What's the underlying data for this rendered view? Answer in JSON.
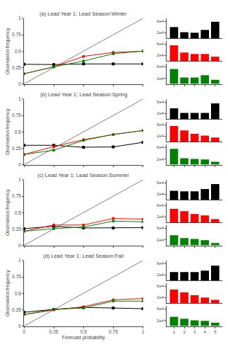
{
  "chart_data": [
    {
      "type": "line",
      "title": "(a) Lead Year 1; Lead Season:Winter",
      "ylabel": "Observation frequency",
      "x": [
        0,
        0.25,
        0.5,
        0.75,
        1.0
      ],
      "xlim": [
        0,
        1
      ],
      "ylim": [
        0,
        1
      ],
      "xticks": [
        0,
        0.25,
        0.5,
        0.75,
        1
      ],
      "yticks": [
        0,
        0.25,
        0.5,
        0.75,
        1
      ],
      "grid": false,
      "tick_labels": "y",
      "series": [
        {
          "color": "gray",
          "values": [
            0,
            0.25,
            0.5,
            0.75,
            1
          ]
        },
        {
          "color": "black",
          "marker": "square",
          "values": [
            0.3,
            0.295,
            0.305,
            0.305,
            0.305
          ]
        },
        {
          "color": "red",
          "marker": "circle",
          "values": [
            0.155,
            0.26,
            0.42,
            0.48,
            0.5
          ]
        },
        {
          "color": "green",
          "marker": "circle",
          "values": [
            0.155,
            0.26,
            0.35,
            0.46,
            0.5
          ]
        }
      ]
    },
    {
      "type": "bar",
      "x": [
        1,
        2,
        3,
        4,
        5
      ],
      "values": [
        40000,
        22000,
        20000,
        30000,
        58000
      ],
      "color": "black",
      "xlim": [
        0.3,
        5.7
      ],
      "ylim": [
        0,
        70000
      ],
      "yticks": [
        {
          "value": 20000,
          "label": "2e4"
        },
        {
          "value": 60000,
          "label": "6e4"
        }
      ],
      "grid": false,
      "tick_labels": "y"
    },
    {
      "type": "bar",
      "x": [
        1,
        2,
        3,
        4,
        5
      ],
      "values": [
        55000,
        30000,
        25000,
        25000,
        16000
      ],
      "color": "red",
      "xlim": [
        0.3,
        5.7
      ],
      "ylim": [
        0,
        70000
      ],
      "yticks": [
        {
          "value": 20000,
          "label": "2e4"
        },
        {
          "value": 60000,
          "label": "6e4"
        }
      ],
      "grid": false,
      "tick_labels": "y"
    },
    {
      "type": "bar",
      "x": [
        1,
        2,
        3,
        4,
        5
      ],
      "values": [
        52000,
        22000,
        22000,
        30000,
        14000
      ],
      "color": "green",
      "xlim": [
        0.3,
        5.7
      ],
      "ylim": [
        0,
        70000
      ],
      "xticks": [
        1,
        2,
        3,
        4,
        5
      ],
      "yticks": [
        {
          "value": 20000,
          "label": "2e4"
        },
        {
          "value": 60000,
          "label": "6e4"
        }
      ],
      "grid": false,
      "tick_labels": "y"
    },
    {
      "type": "line",
      "title": "(b) Lead Year 1; Lead Season:Spring",
      "ylabel": "Observation frequency",
      "x": [
        0,
        0.25,
        0.5,
        0.75,
        1.0
      ],
      "xlim": [
        0,
        1
      ],
      "ylim": [
        0,
        1
      ],
      "xticks": [
        0,
        0.25,
        0.5,
        0.75,
        1
      ],
      "yticks": [
        0,
        0.25,
        0.5,
        0.75,
        1
      ],
      "grid": false,
      "tick_labels": "y",
      "series": [
        {
          "color": "gray",
          "values": [
            0,
            0.25,
            0.5,
            0.75,
            1
          ]
        },
        {
          "color": "black",
          "marker": "square",
          "values": [
            0.295,
            0.295,
            0.265,
            0.27,
            0.34
          ]
        },
        {
          "color": "red",
          "marker": "circle",
          "values": [
            0.155,
            0.275,
            0.38,
            0.46,
            0.52
          ]
        },
        {
          "color": "green",
          "marker": "circle",
          "values": [
            0.155,
            0.22,
            0.37,
            0.46,
            0.52
          ]
        }
      ]
    },
    {
      "type": "bar",
      "x": [
        1,
        2,
        3,
        4,
        5
      ],
      "values": [
        38000,
        22000,
        22000,
        22000,
        55000
      ],
      "color": "black",
      "xlim": [
        0.3,
        5.7
      ],
      "ylim": [
        0,
        70000
      ],
      "yticks": [
        {
          "value": 20000,
          "label": "2e4"
        },
        {
          "value": 60000,
          "label": "6e4"
        }
      ],
      "grid": false,
      "tick_labels": "y"
    },
    {
      "type": "bar",
      "x": [
        1,
        2,
        3,
        4,
        5
      ],
      "values": [
        55000,
        40000,
        28000,
        22000,
        15000
      ],
      "color": "red",
      "xlim": [
        0.3,
        5.7
      ],
      "ylim": [
        0,
        70000
      ],
      "yticks": [
        {
          "value": 20000,
          "label": "2e4"
        },
        {
          "value": 60000,
          "label": "6e4"
        }
      ],
      "grid": false,
      "tick_labels": "y"
    },
    {
      "type": "bar",
      "x": [
        1,
        2,
        3,
        4,
        5
      ],
      "values": [
        55000,
        22000,
        20000,
        18000,
        10000
      ],
      "color": "green",
      "xlim": [
        0.3,
        5.7
      ],
      "ylim": [
        0,
        70000
      ],
      "xticks": [
        1,
        2,
        3,
        4,
        5
      ],
      "yticks": [
        {
          "value": 20000,
          "label": "2e4"
        },
        {
          "value": 60000,
          "label": "6e4"
        }
      ],
      "grid": false,
      "tick_labels": "y"
    },
    {
      "type": "line",
      "title": "(c) Lead Year 1; Lead Season:Summer",
      "ylabel": "Observation frequency",
      "x": [
        0,
        0.25,
        0.5,
        0.75,
        1.0
      ],
      "xlim": [
        0,
        1
      ],
      "ylim": [
        0,
        1
      ],
      "xticks": [
        0,
        0.25,
        0.5,
        0.75,
        1
      ],
      "yticks": [
        0,
        0.25,
        0.5,
        0.75,
        1
      ],
      "grid": false,
      "tick_labels": "y",
      "series": [
        {
          "color": "gray",
          "values": [
            0,
            0.25,
            0.5,
            0.75,
            1
          ]
        },
        {
          "color": "black",
          "marker": "square",
          "values": [
            0.255,
            0.29,
            0.265,
            0.265,
            0.27
          ]
        },
        {
          "color": "red",
          "marker": "circle",
          "values": [
            0.215,
            0.31,
            0.31,
            0.41,
            0.4
          ]
        },
        {
          "color": "green",
          "marker": "circle",
          "values": [
            0.215,
            0.255,
            0.28,
            0.37,
            0.36
          ]
        }
      ]
    },
    {
      "type": "bar",
      "x": [
        1,
        2,
        3,
        4,
        5
      ],
      "values": [
        32000,
        30000,
        30000,
        38000,
        55000
      ],
      "color": "black",
      "xlim": [
        0.3,
        5.7
      ],
      "ylim": [
        0,
        70000
      ],
      "yticks": [
        {
          "value": 20000,
          "label": "2e4"
        },
        {
          "value": 60000,
          "label": "6e4"
        }
      ],
      "grid": false,
      "tick_labels": "y"
    },
    {
      "type": "bar",
      "x": [
        1,
        2,
        3,
        4,
        5
      ],
      "values": [
        48000,
        40000,
        30000,
        25000,
        12000
      ],
      "color": "red",
      "xlim": [
        0.3,
        5.7
      ],
      "ylim": [
        0,
        70000
      ],
      "yticks": [
        {
          "value": 20000,
          "label": "2e4"
        },
        {
          "value": 60000,
          "label": "6e4"
        }
      ],
      "grid": false,
      "tick_labels": "y"
    },
    {
      "type": "bar",
      "x": [
        1,
        2,
        3,
        4,
        5
      ],
      "values": [
        35000,
        25000,
        22000,
        18000,
        8000
      ],
      "color": "green",
      "xlim": [
        0.3,
        5.7
      ],
      "ylim": [
        0,
        70000
      ],
      "xticks": [
        1,
        2,
        3,
        4,
        5
      ],
      "yticks": [
        {
          "value": 20000,
          "label": "2e4"
        },
        {
          "value": 60000,
          "label": "6e4"
        }
      ],
      "grid": false,
      "tick_labels": "y"
    },
    {
      "type": "line",
      "title": "(d) Lead Year 1; Lead Season:Fall",
      "xlabel": "Forecast probability",
      "ylabel": "Observation frequency",
      "x": [
        0,
        0.25,
        0.5,
        0.75,
        1.0
      ],
      "xlim": [
        0,
        1
      ],
      "ylim": [
        0,
        1
      ],
      "xticks": [
        0,
        0.25,
        0.5,
        0.75,
        1
      ],
      "yticks": [
        0,
        0.25,
        0.5,
        0.75,
        1
      ],
      "grid": false,
      "series": [
        {
          "color": "gray",
          "values": [
            0,
            0.25,
            0.5,
            0.75,
            1
          ]
        },
        {
          "color": "black",
          "marker": "square",
          "values": [
            0.21,
            0.255,
            0.285,
            0.275,
            0.265
          ]
        },
        {
          "color": "red",
          "marker": "circle",
          "values": [
            0.175,
            0.245,
            0.295,
            0.4,
            0.42
          ]
        },
        {
          "color": "green",
          "marker": "circle",
          "values": [
            0.175,
            0.255,
            0.275,
            0.38,
            0.38
          ]
        }
      ]
    },
    {
      "type": "bar",
      "x": [
        1,
        2,
        3,
        4,
        5
      ],
      "values": [
        30000,
        30000,
        30000,
        35000,
        52000
      ],
      "color": "black",
      "xlim": [
        0.3,
        5.7
      ],
      "ylim": [
        0,
        70000
      ],
      "yticks": [
        {
          "value": 20000,
          "label": "2e4"
        },
        {
          "value": 60000,
          "label": "6e4"
        }
      ],
      "grid": false,
      "tick_labels": "y"
    },
    {
      "type": "bar",
      "x": [
        1,
        2,
        3,
        4,
        5
      ],
      "values": [
        48000,
        38000,
        28000,
        20000,
        12000
      ],
      "color": "red",
      "xlim": [
        0.3,
        5.7
      ],
      "ylim": [
        0,
        70000
      ],
      "yticks": [
        {
          "value": 20000,
          "label": "2e4"
        },
        {
          "value": 60000,
          "label": "6e4"
        }
      ],
      "grid": false,
      "tick_labels": "y"
    },
    {
      "type": "bar",
      "x": [
        1,
        2,
        3,
        4,
        5
      ],
      "values": [
        32000,
        25000,
        20000,
        18000,
        12000
      ],
      "color": "green",
      "xlim": [
        0.3,
        5.7
      ],
      "ylim": [
        0,
        70000
      ],
      "xticks": [
        1,
        2,
        3,
        4,
        5
      ],
      "yticks": [
        {
          "value": 20000,
          "label": "2e4"
        },
        {
          "value": 60000,
          "label": "6e4"
        }
      ],
      "grid": false
    }
  ]
}
